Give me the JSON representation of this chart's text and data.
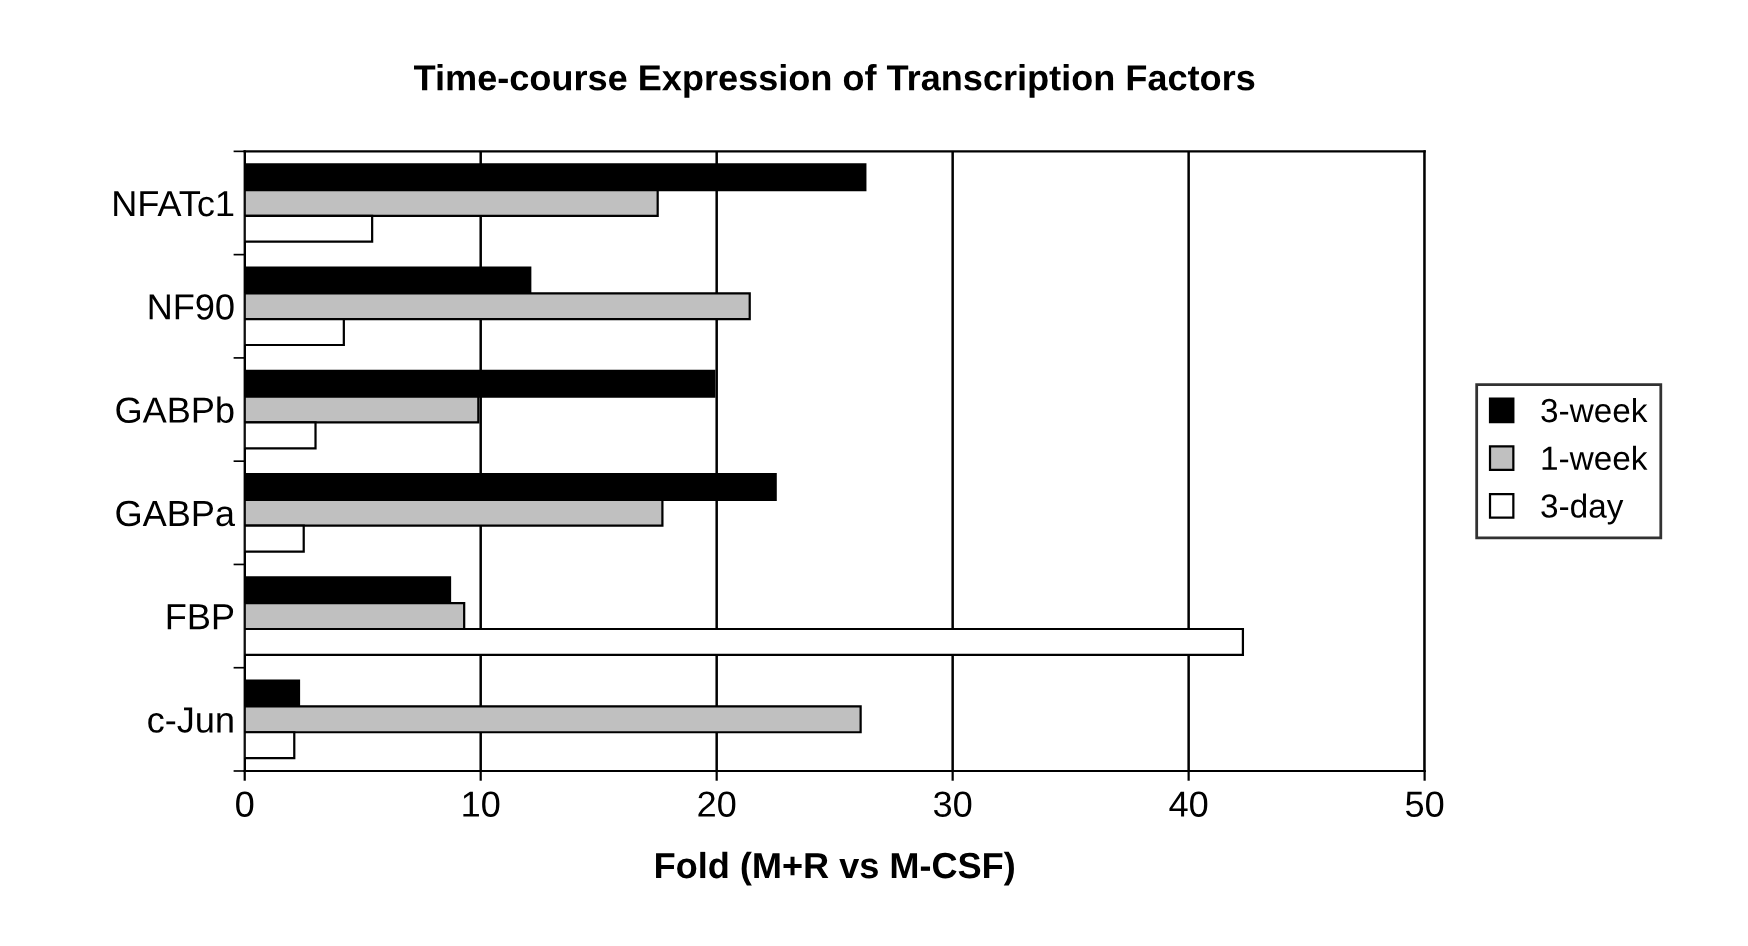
{
  "chart_data": {
    "type": "bar",
    "orientation": "horizontal",
    "title": "Time-course Expression of Transcription Factors",
    "xlabel": "Fold (M+R vs M-CSF)",
    "categories": [
      "NFATc1",
      "NF90",
      "GABPb",
      "GABPa",
      "FBP",
      "c-Jun"
    ],
    "series": [
      {
        "name": "3-week",
        "color": "#000000",
        "values": [
          26.3,
          12.1,
          19.9,
          22.5,
          8.7,
          2.3
        ]
      },
      {
        "name": "1-week",
        "color": "#c0c0c0",
        "values": [
          17.5,
          21.4,
          9.9,
          17.7,
          9.3,
          26.1
        ]
      },
      {
        "name": "3-day",
        "color": "#ffffff",
        "values": [
          5.4,
          4.2,
          3.0,
          2.5,
          42.3,
          2.1
        ]
      }
    ],
    "xlim": [
      0,
      50
    ],
    "xticks": [
      0,
      10,
      20,
      30,
      40,
      50
    ],
    "grid": "x",
    "legend": "right"
  }
}
